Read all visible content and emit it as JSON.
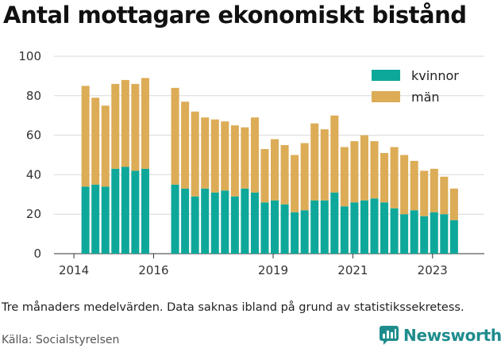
{
  "title": "Antal mottagare ekonomiskt bistånd",
  "caption": "Tre månaders medelvärden. Data saknas ibland på grund av statistikssekretess.",
  "source": "Källa: Socialstyrelsen",
  "brand": {
    "name": "Newsworthy",
    "icon": "newsworthy-logo-icon"
  },
  "colors": {
    "kvinnor": "#0ea89a",
    "man": "#dcac57",
    "grid": "#d9d9d9",
    "brand": "#1e8c8c"
  },
  "chart_data": {
    "type": "bar",
    "stacked": true,
    "x_tick_labels": [
      "2014",
      "2016",
      "2019",
      "2021",
      "2023"
    ],
    "x_ticks": [
      2014.0,
      2016.0,
      2019.0,
      2021.0,
      2023.0
    ],
    "xlim": [
      2013.5,
      2024.3
    ],
    "ylim": [
      0,
      100
    ],
    "y_ticks": [
      0,
      20,
      40,
      60,
      80,
      100
    ],
    "grid": true,
    "legend_position": "top-right",
    "series": [
      {
        "name": "kvinnor",
        "color": "#0ea89a",
        "points": [
          [
            2014.29,
            34
          ],
          [
            2014.54,
            35
          ],
          [
            2014.79,
            34
          ],
          [
            2015.04,
            43
          ],
          [
            2015.29,
            44
          ],
          [
            2015.54,
            42
          ],
          [
            2015.79,
            43
          ],
          [
            2016.54,
            35
          ],
          [
            2016.79,
            33
          ],
          [
            2017.04,
            29
          ],
          [
            2017.29,
            33
          ],
          [
            2017.54,
            31
          ],
          [
            2017.79,
            32
          ],
          [
            2018.04,
            29
          ],
          [
            2018.29,
            33
          ],
          [
            2018.54,
            31
          ],
          [
            2018.79,
            26
          ],
          [
            2019.04,
            27
          ],
          [
            2019.29,
            25
          ],
          [
            2019.54,
            21
          ],
          [
            2019.79,
            22
          ],
          [
            2020.04,
            27
          ],
          [
            2020.29,
            27
          ],
          [
            2020.54,
            31
          ],
          [
            2020.79,
            24
          ],
          [
            2021.04,
            26
          ],
          [
            2021.29,
            27
          ],
          [
            2021.54,
            28
          ],
          [
            2021.79,
            26
          ],
          [
            2022.04,
            23
          ],
          [
            2022.29,
            20
          ],
          [
            2022.54,
            22
          ],
          [
            2022.79,
            19
          ],
          [
            2023.04,
            21
          ],
          [
            2023.29,
            20
          ],
          [
            2023.54,
            17
          ]
        ]
      },
      {
        "name": "män",
        "color": "#dcac57",
        "points": [
          [
            2014.29,
            51
          ],
          [
            2014.54,
            44
          ],
          [
            2014.79,
            41
          ],
          [
            2015.04,
            43
          ],
          [
            2015.29,
            44
          ],
          [
            2015.54,
            44
          ],
          [
            2015.79,
            46
          ],
          [
            2016.54,
            49
          ],
          [
            2016.79,
            44
          ],
          [
            2017.04,
            43
          ],
          [
            2017.29,
            36
          ],
          [
            2017.54,
            37
          ],
          [
            2017.79,
            35
          ],
          [
            2018.04,
            36
          ],
          [
            2018.29,
            31
          ],
          [
            2018.54,
            38
          ],
          [
            2018.79,
            27
          ],
          [
            2019.04,
            31
          ],
          [
            2019.29,
            30
          ],
          [
            2019.54,
            29
          ],
          [
            2019.79,
            34
          ],
          [
            2020.04,
            39
          ],
          [
            2020.29,
            36
          ],
          [
            2020.54,
            39
          ],
          [
            2020.79,
            30
          ],
          [
            2021.04,
            31
          ],
          [
            2021.29,
            33
          ],
          [
            2021.54,
            29
          ],
          [
            2021.79,
            25
          ],
          [
            2022.04,
            31
          ],
          [
            2022.29,
            30
          ],
          [
            2022.54,
            25
          ],
          [
            2022.79,
            23
          ],
          [
            2023.04,
            22
          ],
          [
            2023.29,
            19
          ],
          [
            2023.54,
            16
          ]
        ]
      }
    ]
  }
}
